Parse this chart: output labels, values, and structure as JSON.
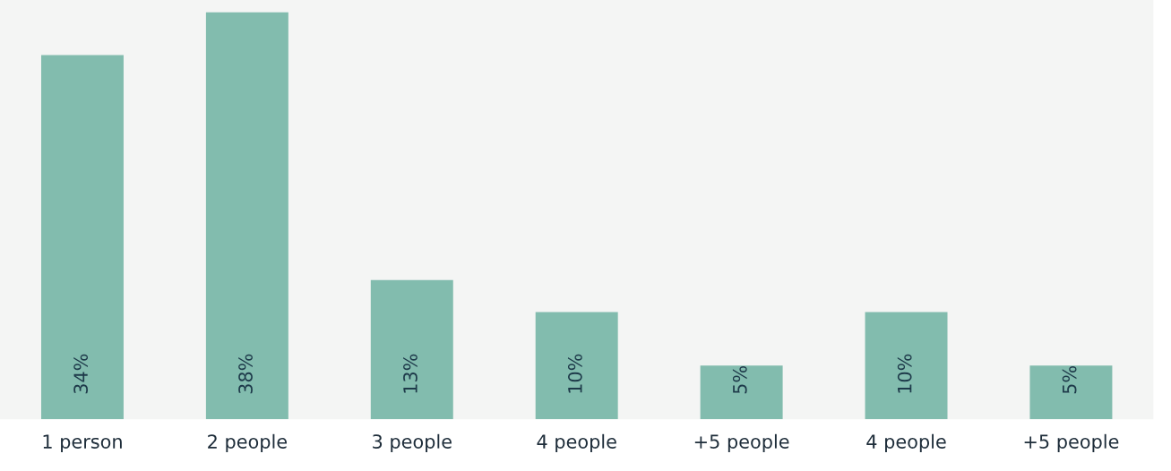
{
  "chart_data": {
    "type": "bar",
    "categories": [
      "1 person",
      "2 people",
      "3 people",
      "4 people",
      "+5 people",
      "4 people",
      "+5 people"
    ],
    "values": [
      34,
      38,
      13,
      10,
      5,
      10,
      5
    ],
    "value_labels": [
      "34%",
      "38%",
      "13%",
      "10%",
      "5%",
      "10%",
      "5%"
    ],
    "color": "#82bcae",
    "grid": false,
    "legend": false
  }
}
